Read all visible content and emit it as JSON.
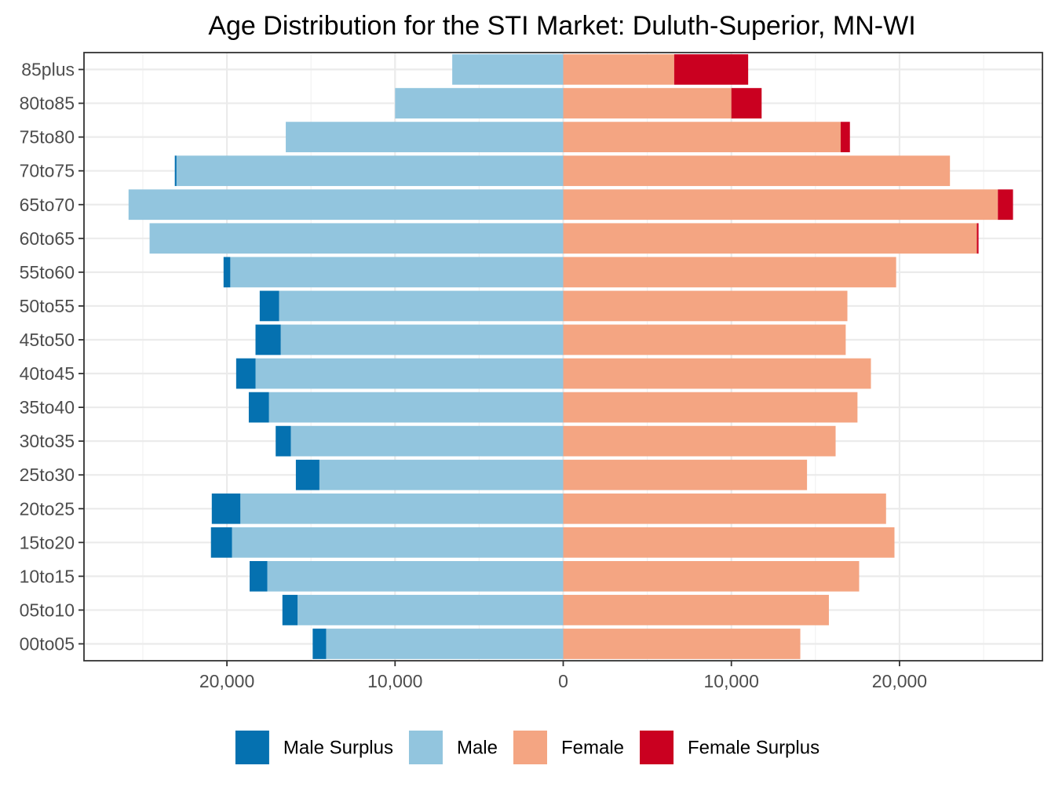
{
  "chart_data": {
    "type": "bar",
    "orientation": "horizontal-diverging",
    "title": "Age Distribution for the STI Market: Duluth-Superior, MN-WI",
    "xlabel": "",
    "ylabel": "",
    "xlim": [
      -28500,
      28500
    ],
    "x_ticks": [
      -20000,
      -10000,
      0,
      10000,
      20000
    ],
    "x_tick_labels": [
      "20,000",
      "10,000",
      "0",
      "10,000",
      "20,000"
    ],
    "grid": true,
    "legend_position": "bottom",
    "categories": [
      "00to05",
      "05to10",
      "10to15",
      "15to20",
      "20to25",
      "25to30",
      "30to35",
      "35to40",
      "40to45",
      "45to50",
      "50to55",
      "55to60",
      "60to65",
      "65to70",
      "70to75",
      "75to80",
      "80to85",
      "85plus"
    ],
    "series": [
      {
        "name": "Male Surplus",
        "color": "#0571b0",
        "values": [
          800,
          900,
          1050,
          1250,
          1700,
          1400,
          900,
          1200,
          1150,
          1500,
          1150,
          400,
          0,
          0,
          100,
          0,
          0,
          0
        ]
      },
      {
        "name": "Male",
        "color": "#92c5de",
        "values": [
          14100,
          15800,
          17600,
          19700,
          19200,
          14500,
          16200,
          17500,
          18300,
          16800,
          16900,
          19800,
          24600,
          25850,
          23000,
          16500,
          10000,
          6600
        ]
      },
      {
        "name": "Female",
        "color": "#f4a582",
        "values": [
          14100,
          15800,
          17600,
          19700,
          19200,
          14500,
          16200,
          17500,
          18300,
          16800,
          16900,
          19800,
          24600,
          25850,
          23000,
          16500,
          10000,
          6600
        ]
      },
      {
        "name": "Female Surplus",
        "color": "#ca0020",
        "values": [
          0,
          0,
          0,
          0,
          0,
          0,
          0,
          0,
          0,
          0,
          0,
          0,
          100,
          900,
          0,
          550,
          1800,
          4400
        ]
      }
    ]
  }
}
